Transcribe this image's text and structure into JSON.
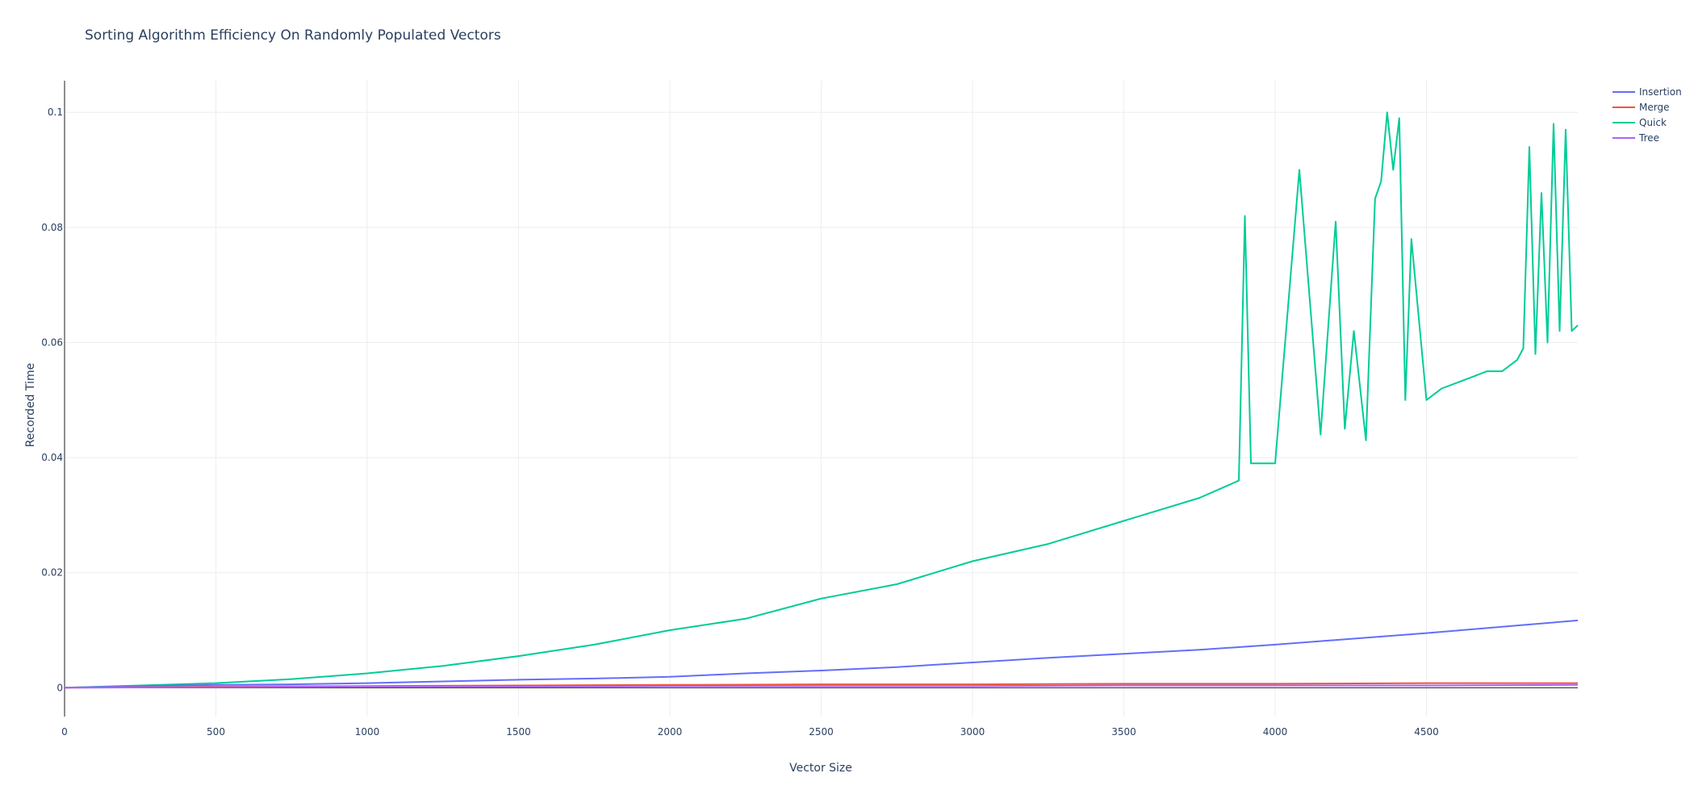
{
  "chart_data": {
    "type": "line",
    "title": "Sorting Algorithm Efficiency On Randomly Populated Vectors",
    "xlabel": "Vector Size",
    "ylabel": "Recorded Time",
    "xlim": [
      0,
      5000
    ],
    "ylim": [
      -0.005,
      0.1055
    ],
    "x_ticks": [
      0,
      500,
      1000,
      1500,
      2000,
      2500,
      3000,
      3500,
      4000,
      4500
    ],
    "x_tick_labels": [
      "0",
      "500",
      "1000",
      "1500",
      "2000",
      "2500",
      "3000",
      "3500",
      "4000",
      "4500"
    ],
    "y_ticks": [
      0,
      0.02,
      0.04,
      0.06,
      0.08,
      0.1
    ],
    "y_tick_labels": [
      "0",
      "0.02",
      "0.04",
      "0.06",
      "0.08",
      "0.1"
    ],
    "grid": true,
    "legend_position": "top-right",
    "series": [
      {
        "name": "Insertion",
        "color": "#636efa",
        "x": [
          0,
          250,
          500,
          750,
          1000,
          1250,
          1500,
          1750,
          2000,
          2250,
          2500,
          2750,
          3000,
          3250,
          3500,
          3750,
          4000,
          4250,
          4500,
          4750,
          5000
        ],
        "y": [
          0,
          0.0003,
          0.0005,
          0.0006,
          0.0008,
          0.0011,
          0.0014,
          0.0016,
          0.0019,
          0.0025,
          0.003,
          0.0036,
          0.0044,
          0.0052,
          0.0059,
          0.0066,
          0.0075,
          0.0085,
          0.0095,
          0.0106,
          0.0117
        ]
      },
      {
        "name": "Merge",
        "color": "#ef553b",
        "x": [
          0,
          500,
          1000,
          1500,
          2000,
          2500,
          3000,
          3500,
          4000,
          4500,
          5000
        ],
        "y": [
          0,
          0.0002,
          0.0003,
          0.0004,
          0.0005,
          0.0006,
          0.0006,
          0.0007,
          0.0007,
          0.0008,
          0.0008
        ]
      },
      {
        "name": "Quick",
        "color": "#00cc96",
        "x": [
          0,
          250,
          500,
          750,
          1000,
          1250,
          1500,
          1750,
          2000,
          2250,
          2500,
          2750,
          3000,
          3250,
          3500,
          3750,
          3880,
          3900,
          3920,
          4000,
          4080,
          4150,
          4200,
          4230,
          4260,
          4300,
          4330,
          4350,
          4370,
          4390,
          4410,
          4430,
          4450,
          4500,
          4550,
          4600,
          4650,
          4700,
          4750,
          4800,
          4820,
          4840,
          4860,
          4880,
          4900,
          4920,
          4940,
          4960,
          4980,
          5000
        ],
        "y": [
          0,
          0.0004,
          0.0008,
          0.0015,
          0.0025,
          0.0038,
          0.0055,
          0.0075,
          0.01,
          0.012,
          0.0155,
          0.018,
          0.022,
          0.025,
          0.029,
          0.033,
          0.036,
          0.082,
          0.039,
          0.039,
          0.09,
          0.044,
          0.081,
          0.045,
          0.062,
          0.043,
          0.085,
          0.088,
          0.1,
          0.09,
          0.099,
          0.05,
          0.078,
          0.05,
          0.052,
          0.053,
          0.054,
          0.055,
          0.055,
          0.057,
          0.059,
          0.094,
          0.058,
          0.086,
          0.06,
          0.098,
          0.062,
          0.097,
          0.062,
          0.063
        ]
      },
      {
        "name": "Tree",
        "color": "#ab63fa",
        "x": [
          0,
          500,
          1000,
          1500,
          2000,
          2500,
          3000,
          3500,
          4000,
          4500,
          5000
        ],
        "y": [
          0,
          0.0001,
          0.0002,
          0.0002,
          0.0003,
          0.0003,
          0.0003,
          0.0004,
          0.0004,
          0.0004,
          0.0005
        ]
      }
    ]
  }
}
